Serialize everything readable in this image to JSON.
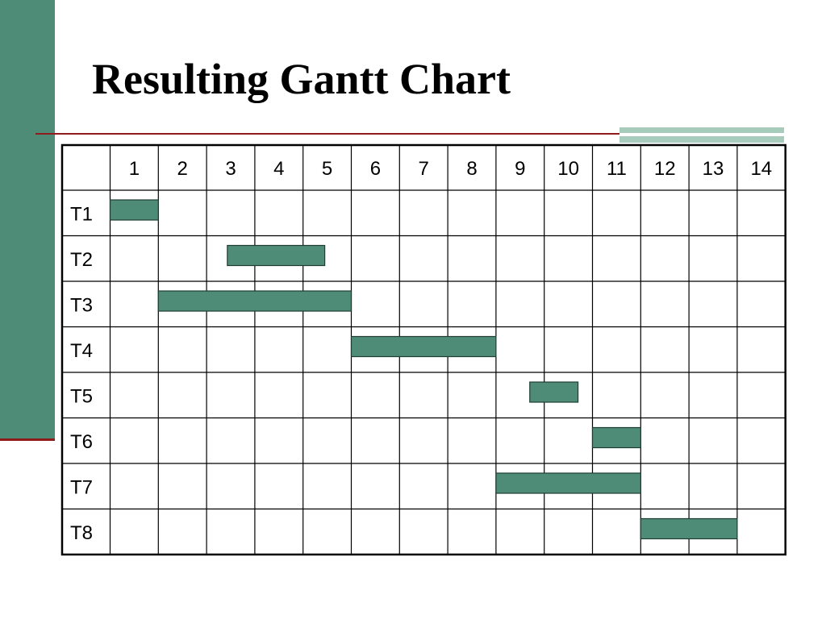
{
  "slide": {
    "title": "Resulting Gantt Chart"
  },
  "colors": {
    "side_bar": "#4e8c78",
    "rule": "#8e1c1c",
    "accent": "#a8ccbc",
    "bar_fill": "#4e8c78",
    "grid": "#000000"
  },
  "chart_data": {
    "type": "table",
    "columns": [
      "1",
      "2",
      "3",
      "4",
      "5",
      "6",
      "7",
      "8",
      "9",
      "10",
      "11",
      "12",
      "13",
      "14"
    ],
    "rows": [
      "T1",
      "T2",
      "T3",
      "T4",
      "T5",
      "T6",
      "T7",
      "T8"
    ],
    "tasks": [
      {
        "task": "T1",
        "start": 1.0,
        "end": 2.0
      },
      {
        "task": "T2",
        "start": 3.43,
        "end": 5.45
      },
      {
        "task": "T3",
        "start": 2.0,
        "end": 6.0
      },
      {
        "task": "T4",
        "start": 6.0,
        "end": 9.0
      },
      {
        "task": "T5",
        "start": 9.7,
        "end": 10.7
      },
      {
        "task": "T6",
        "start": 11.0,
        "end": 12.0
      },
      {
        "task": "T7",
        "start": 9.0,
        "end": 12.0
      },
      {
        "task": "T8",
        "start": 12.0,
        "end": 14.0
      }
    ]
  }
}
